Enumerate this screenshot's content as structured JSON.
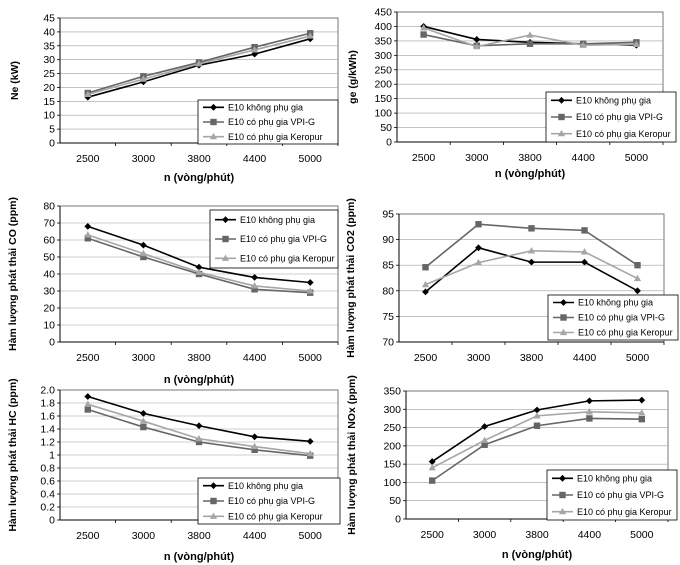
{
  "series_names": [
    "E10 không phụ gia",
    "E10 có phụ gia VPI-G",
    "E10 có phụ gia Keropur"
  ],
  "colors": {
    "series": [
      "#000000",
      "#666666",
      "#a6a6a6"
    ],
    "grid": "#a0a0a0",
    "axis": "#000000"
  },
  "chart_data": [
    {
      "type": "line",
      "ylabel": "Ne (kW)",
      "xlabel": "n (vòng/phút)",
      "categories": [
        "2500",
        "3000",
        "3800",
        "4400",
        "5000"
      ],
      "ylim": [
        0,
        45
      ],
      "yticks": [
        0,
        5,
        10,
        15,
        20,
        25,
        30,
        35,
        40,
        45
      ],
      "legend_position": "bottom-right",
      "series": [
        {
          "name": "E10 không phụ gia",
          "values": [
            16.5,
            22,
            28,
            32,
            37.5
          ]
        },
        {
          "name": "E10 có phụ gia VPI-G",
          "values": [
            18,
            24,
            29,
            34.5,
            39.5
          ]
        },
        {
          "name": "E10 có phụ gia Keropur",
          "values": [
            17.5,
            23,
            28.5,
            33.5,
            38.5
          ]
        }
      ]
    },
    {
      "type": "line",
      "ylabel": "ge (g/kWh)",
      "xlabel": "n (vòng/phút)",
      "categories": [
        "2500",
        "3000",
        "3800",
        "4400",
        "5000"
      ],
      "ylim": [
        0,
        450
      ],
      "yticks": [
        0,
        50,
        100,
        150,
        200,
        250,
        300,
        350,
        400,
        450
      ],
      "legend_position": "bottom-right",
      "series": [
        {
          "name": "E10 không phụ gia",
          "values": [
            400,
            355,
            345,
            340,
            335
          ]
        },
        {
          "name": "E10 có phụ gia VPI-G",
          "values": [
            372,
            333,
            340,
            340,
            345
          ]
        },
        {
          "name": "E10 có phụ gia Keropur",
          "values": [
            395,
            330,
            370,
            335,
            338
          ]
        }
      ]
    },
    {
      "type": "line",
      "ylabel": "Hàm lượng phát thải CO (ppm)",
      "xlabel": "n (vòng/phút)",
      "categories": [
        "2500",
        "3000",
        "3800",
        "4400",
        "5000"
      ],
      "ylim": [
        0,
        80
      ],
      "yticks": [
        0,
        10,
        20,
        30,
        40,
        50,
        60,
        70,
        80
      ],
      "legend_position": "top-right",
      "series": [
        {
          "name": "E10 không phụ gia",
          "values": [
            68,
            57,
            44,
            38,
            35
          ]
        },
        {
          "name": "E10 có phụ gia VPI-G",
          "values": [
            61,
            50,
            40,
            31,
            29
          ]
        },
        {
          "name": "E10 có phụ gia Keropur",
          "values": [
            63,
            52,
            41,
            33,
            30
          ]
        }
      ]
    },
    {
      "type": "line",
      "ylabel": "Hàm lượng phát thải CO2 (ppm)",
      "xlabel": "",
      "categories": [
        "2500",
        "3000",
        "3800",
        "4400",
        "5000"
      ],
      "ylim": [
        70,
        95
      ],
      "yticks": [
        70,
        75,
        80,
        85,
        90,
        95
      ],
      "legend_position": "bottom-right",
      "series": [
        {
          "name": "E10 không phụ gia",
          "values": [
            79.8,
            88.4,
            85.6,
            85.6,
            80
          ]
        },
        {
          "name": "E10 có phụ gia VPI-G",
          "values": [
            84.6,
            93,
            92.2,
            91.8,
            85
          ]
        },
        {
          "name": "E10 có phụ gia Keropur",
          "values": [
            81.2,
            85.5,
            87.8,
            87.6,
            82.4
          ]
        }
      ]
    },
    {
      "type": "line",
      "ylabel": "Hàm lượng phát thải HC (ppm)",
      "xlabel": "n (vòng/phút)",
      "categories": [
        "2500",
        "3000",
        "3800",
        "4400",
        "5000"
      ],
      "ylim": [
        0,
        2
      ],
      "yticks": [
        0,
        0.2,
        0.4,
        0.6,
        0.8,
        1,
        1.2,
        1.4,
        1.6,
        1.8,
        2
      ],
      "yticklabels": [
        "0",
        "0.2",
        "0.4",
        "0.6",
        "0.8",
        "1",
        "1.2",
        "1.4",
        "1.6",
        "1.8",
        "2.0"
      ],
      "legend_position": "bottom-center",
      "series": [
        {
          "name": "E10 không phụ gia",
          "values": [
            1.9,
            1.64,
            1.45,
            1.28,
            1.21
          ]
        },
        {
          "name": "E10 có phụ gia VPI-G",
          "values": [
            1.7,
            1.43,
            1.2,
            1.08,
            0.99
          ]
        },
        {
          "name": "E10 có phụ gia Keropur",
          "values": [
            1.78,
            1.52,
            1.25,
            1.13,
            1.02
          ]
        }
      ]
    },
    {
      "type": "line",
      "ylabel": "Hàm lượng phát thải NOx (ppm)",
      "xlabel": "n (vòng/phút)",
      "categories": [
        "2500",
        "3000",
        "3800",
        "4400",
        "5000"
      ],
      "ylim": [
        0,
        350
      ],
      "yticks": [
        0,
        50,
        100,
        150,
        200,
        250,
        300,
        350
      ],
      "legend_position": "bottom-right",
      "series": [
        {
          "name": "E10 không phụ gia",
          "values": [
            157,
            253,
            298,
            323,
            325
          ]
        },
        {
          "name": "E10 có phụ gia VPI-G",
          "values": [
            105,
            203,
            255,
            275,
            273
          ]
        },
        {
          "name": "E10 có phụ gia Keropur",
          "values": [
            140,
            215,
            282,
            293,
            290
          ]
        }
      ]
    }
  ]
}
